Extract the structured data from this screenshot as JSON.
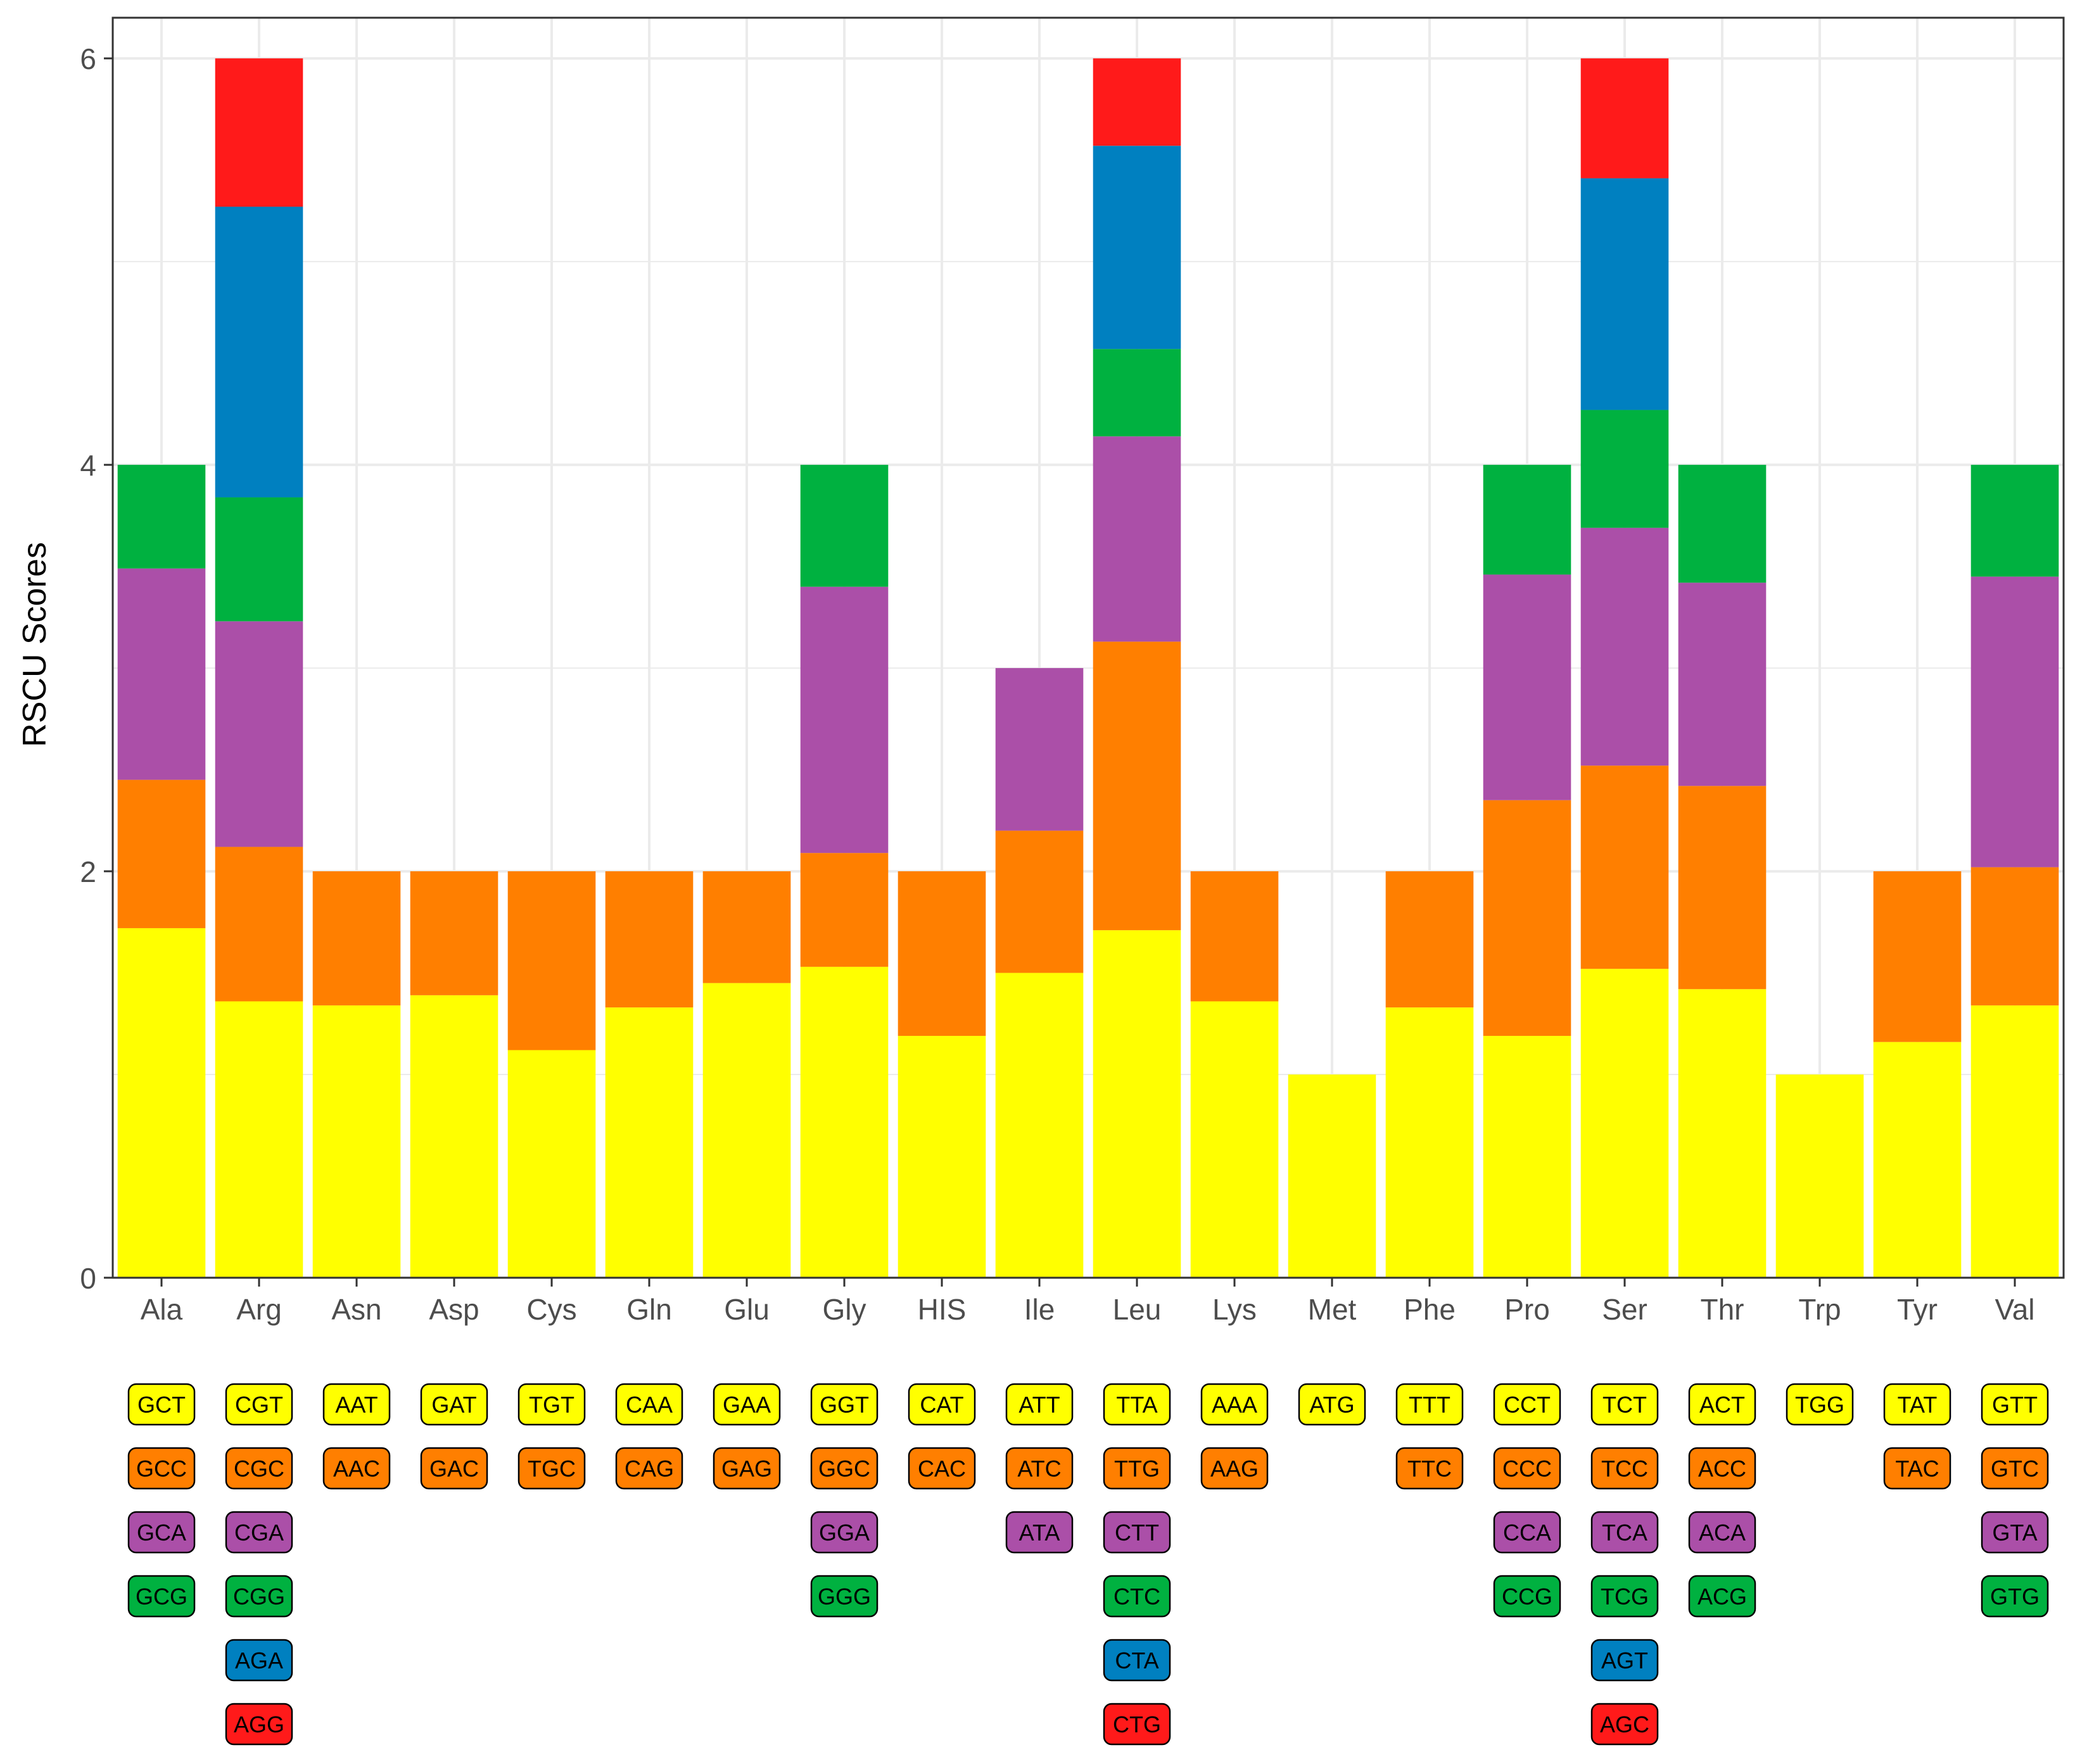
{
  "chart_data": {
    "type": "bar",
    "stacked": true,
    "title": "",
    "xlabel": "",
    "ylabel": "RSCU Scores",
    "ylim": [
      0,
      6.2
    ],
    "yticks": [
      "0",
      "2",
      "4",
      "6"
    ],
    "grid": true,
    "layer_colors": [
      "#ffff00",
      "#ff7f00",
      "#ab4fa8",
      "#00b140",
      "#0080c0",
      "#ff1a1a"
    ],
    "categories": [
      {
        "label": "Ala",
        "values": [
          1.72,
          0.73,
          1.04,
          0.51
        ],
        "codons": [
          "GCT",
          "GCC",
          "GCA",
          "GCG"
        ]
      },
      {
        "label": "Arg",
        "values": [
          1.36,
          0.76,
          1.11,
          0.61,
          1.43,
          0.73
        ],
        "codons": [
          "CGT",
          "CGC",
          "CGA",
          "CGG",
          "AGA",
          "AGG"
        ]
      },
      {
        "label": "Asn",
        "values": [
          1.34,
          0.66
        ],
        "codons": [
          "AAT",
          "AAC"
        ]
      },
      {
        "label": "Asp",
        "values": [
          1.39,
          0.61
        ],
        "codons": [
          "GAT",
          "GAC"
        ]
      },
      {
        "label": "Cys",
        "values": [
          1.12,
          0.88
        ],
        "codons": [
          "TGT",
          "TGC"
        ]
      },
      {
        "label": "Gln",
        "values": [
          1.33,
          0.67
        ],
        "codons": [
          "CAA",
          "CAG"
        ]
      },
      {
        "label": "Glu",
        "values": [
          1.45,
          0.55
        ],
        "codons": [
          "GAA",
          "GAG"
        ]
      },
      {
        "label": "Gly",
        "values": [
          1.53,
          0.56,
          1.31,
          0.6
        ],
        "codons": [
          "GGT",
          "GGC",
          "GGA",
          "GGG"
        ]
      },
      {
        "label": "HIS",
        "values": [
          1.19,
          0.81
        ],
        "codons": [
          "CAT",
          "CAC"
        ]
      },
      {
        "label": "Ile",
        "values": [
          1.5,
          0.7,
          0.8
        ],
        "codons": [
          "ATT",
          "ATC",
          "ATA"
        ]
      },
      {
        "label": "Leu",
        "values": [
          1.71,
          1.42,
          1.01,
          0.43,
          1.0,
          0.43
        ],
        "codons": [
          "TTA",
          "TTG",
          "CTT",
          "CTC",
          "CTA",
          "CTG"
        ]
      },
      {
        "label": "Lys",
        "values": [
          1.36,
          0.64
        ],
        "codons": [
          "AAA",
          "AAG"
        ]
      },
      {
        "label": "Met",
        "values": [
          1.0
        ],
        "codons": [
          "ATG"
        ]
      },
      {
        "label": "Phe",
        "values": [
          1.33,
          0.67
        ],
        "codons": [
          "TTT",
          "TTC"
        ]
      },
      {
        "label": "Pro",
        "values": [
          1.19,
          1.16,
          1.11,
          0.54
        ],
        "codons": [
          "CCT",
          "CCC",
          "CCA",
          "CCG"
        ]
      },
      {
        "label": "Ser",
        "values": [
          1.52,
          1.0,
          1.17,
          0.58,
          1.14,
          0.59
        ],
        "codons": [
          "TCT",
          "TCC",
          "TCA",
          "TCG",
          "AGT",
          "AGC"
        ]
      },
      {
        "label": "Thr",
        "values": [
          1.42,
          1.0,
          1.0,
          0.58
        ],
        "codons": [
          "ACT",
          "ACC",
          "ACA",
          "ACG"
        ]
      },
      {
        "label": "Trp",
        "values": [
          1.0
        ],
        "codons": [
          "TGG"
        ]
      },
      {
        "label": "Tyr",
        "values": [
          1.16,
          0.84
        ],
        "codons": [
          "TAT",
          "TAC"
        ]
      },
      {
        "label": "Val",
        "values": [
          1.34,
          0.68,
          1.43,
          0.55
        ],
        "codons": [
          "GTT",
          "GTC",
          "GTA",
          "GTG"
        ]
      }
    ]
  }
}
